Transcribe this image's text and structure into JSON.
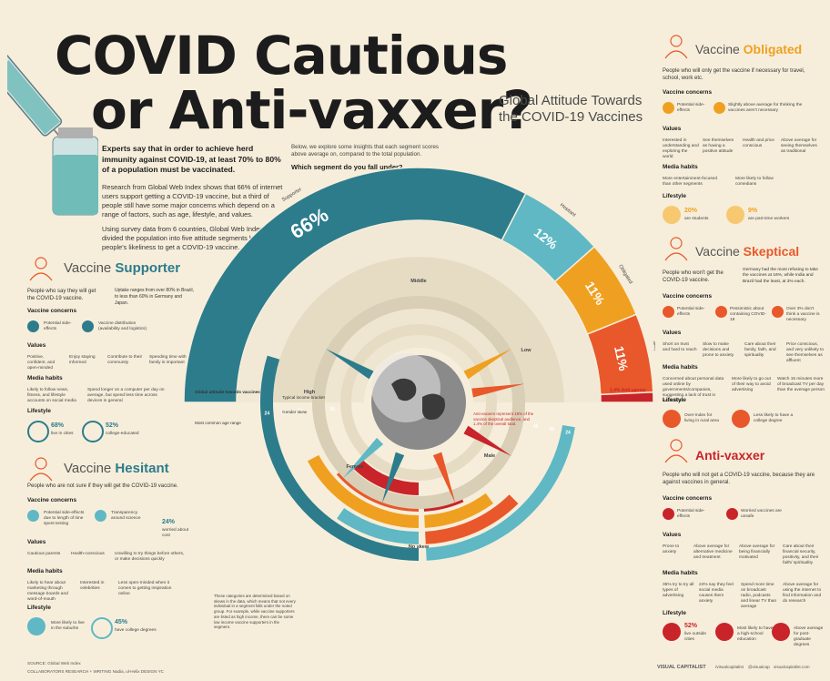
{
  "title": {
    "line1": "COVID Cautious",
    "line2": "or Anti-vaxxer?"
  },
  "subtitle": "Global Attitude Towards the COVID-19 Vaccines",
  "intro": {
    "lead": "Experts say that in order to achieve herd immunity against COVID-19, at least 70% to 80% of a population must be vaccinated.",
    "p1": "Research from Global Web Index shows that 66% of internet users support getting a COVID-19 vaccine, but a third of people still have some major concerns which depend on a range of factors, such as age, lifestyle, and values.",
    "p2": "Using survey data from 6 countries, Global Web Index divided the population into five attitude segments based on people's likeliness to get a COVID-19 vaccine."
  },
  "mid_intro": {
    "text": "Below, we explore some insights that each segment scores above average on, compared to the total population.",
    "question": "Which segment do you fall under?"
  },
  "chart_data": {
    "type": "pie",
    "title": "Global attitude towards vaccines",
    "categories": [
      "Supporter",
      "Hesitant",
      "Obligated",
      "Skeptical",
      "Anti-vaxxer"
    ],
    "values": [
      66,
      12,
      11,
      11,
      1.4
    ],
    "labels": [
      "66%",
      "12%",
      "11%",
      "11%",
      "1.4% Anti-vaxxer"
    ],
    "colors": [
      "#2c7c8c",
      "#5fb8c4",
      "#f0a020",
      "#e8582a",
      "#c8242a"
    ],
    "inner_labels": {
      "typical_income": "Typical income bracket",
      "gender": "Gender skew",
      "age": "Most common age range",
      "global": "Global attitude towards vaccines"
    },
    "income_labels": [
      "High",
      "Middle",
      "Low"
    ],
    "gender_labels": [
      "Female",
      "No skew",
      "Male"
    ],
    "age_bars": [
      {
        "segment": "Supporter",
        "value": "24",
        "color": "#2c7c8c"
      },
      {
        "segment": "Hesitant",
        "value": "18",
        "color": "#5fb8c4"
      },
      {
        "segment": "Obligated",
        "value": "25",
        "color": "#f0a020"
      },
      {
        "segment": "Skeptical",
        "value": "16",
        "color": "#e8582a"
      },
      {
        "segment": "Anti-vaxxer",
        "value": "16",
        "color": "#c8242a"
      }
    ],
    "age_bars_right": [
      {
        "segment": "Hesitant",
        "value": "24",
        "color": "#5fb8c4"
      },
      {
        "segment": "Skeptical",
        "value": "55",
        "color": "#e8582a"
      },
      {
        "segment": "Obligated",
        "value": "45",
        "color": "#f0a020"
      },
      {
        "segment": "Anti-vaxxer",
        "value": "64",
        "color": "#c8242a"
      }
    ],
    "anti_vaxxer_note": "Anti-vaxxers represent 15% of the vaccine skeptical audience, and 1.4% of the overall total.",
    "bottom_note": "These categories are determined based on skews in the data, which means that not every individual in a segment falls under the noted group. For example, while vaccine supporters are listed as high income, there can be some low income vaccine supporters in the segment."
  },
  "supporter": {
    "title_a": "Vaccine ",
    "title_b": "Supporter",
    "desc": "People who say they will get the COVID-19 vaccine.",
    "note": "Uptake ranges from over 80% in Brazil, to less than 60% in Germany and Japan.",
    "concerns_label": "Vaccine concerns",
    "concerns": [
      "Potential side-effects",
      "Vaccine distribution (availability and logistics)"
    ],
    "values_label": "Values",
    "values": [
      "Positive, confident, and open-minded",
      "Enjoy staying informed",
      "Contribute to their community",
      "Spending time with family is important"
    ],
    "media_label": "Media habits",
    "media": [
      "Likely to follow news, fitness, and lifestyle accounts on social media",
      "Spend longer on a computer per day on average, but spend less time across devices in general"
    ],
    "lifestyle_label": "Lifestyle",
    "stats": [
      {
        "v": "68%",
        "l": "live in cities"
      },
      {
        "v": "52%",
        "l": "college-educated"
      }
    ]
  },
  "hesitant": {
    "title_a": "Vaccine ",
    "title_b": "Hesitant",
    "desc": "People who are not sure if they will get the COVID-19 vaccine.",
    "concerns_label": "Vaccine concerns",
    "concerns": [
      "Potential side-effects due to length of time spent testing",
      "Transparency around science",
      "worried about cost"
    ],
    "concern_stat": "24%",
    "values_label": "Values",
    "values": [
      "Cautious parents",
      "Health-conscious",
      "Unwilling to try things before others, or make decisions quickly"
    ],
    "media_label": "Media habits",
    "media": [
      "Likely to hear about marketing through message boards and word-of-mouth",
      "Interested in celebrities",
      "Less open-minded when it comes to getting inspiration online"
    ],
    "lifestyle_label": "Lifestyle",
    "stats": [
      {
        "v": "",
        "l": "More likely to live in the suburbs"
      },
      {
        "v": "45%",
        "l": "have college degrees"
      }
    ]
  },
  "obligated": {
    "title_a": "Vaccine ",
    "title_b": "Obligated",
    "desc": "People who will only get the vaccine if necessary for travel, school, work etc.",
    "concerns_label": "Vaccine concerns",
    "concerns": [
      "Potential side-effects",
      "Slightly above average for thinking the vaccines aren't necessary"
    ],
    "values_label": "Values",
    "values": [
      "Interested in understanding and exploring the world",
      "See themselves as having a positive attitude",
      "Health and price conscious",
      "Above average for seeing themselves as traditional"
    ],
    "media_label": "Media habits",
    "media": [
      "More entertainment-focused than other segments",
      "More likely to follow comedians"
    ],
    "lifestyle_label": "Lifestyle",
    "stats": [
      {
        "v": "20%",
        "l": "are students"
      },
      {
        "v": "9%",
        "l": "are part-time workers"
      }
    ]
  },
  "skeptical": {
    "title_a": "Vaccine ",
    "title_b": "Skeptical",
    "desc": "People who won't get the COVID-19 vaccine.",
    "note": "Germany had the most refusing to take the vaccines at 16%, while India and Brazil had the least, at 3% each.",
    "concerns_label": "Vaccine concerns",
    "concerns": [
      "Potential side-effects",
      "Pessimistic about containing COVID-19",
      "Over 3% don't think a vaccine is necessary"
    ],
    "values_label": "Values",
    "values": [
      "Short on trust and hard to reach",
      "Slow to make decisions and prone to anxiety",
      "Care about their family, faith, and spirituality",
      "Price conscious, and very unlikely to see themselves as affluent"
    ],
    "media_label": "Media habits",
    "media": [
      "Concerned about personal data used online by governments/companies, suggesting a lack of trust in institutions",
      "More likely to go out of their way to avoid advertising",
      "Watch 15 minutes more of broadcast TV per day than the average person"
    ],
    "lifestyle_label": "Lifestyle",
    "stats": [
      {
        "v": "",
        "l": "Over-index for living in rural area"
      },
      {
        "v": "",
        "l": "Less likely to have a college degree"
      }
    ]
  },
  "antivaxxer": {
    "title": "Anti-vaxxer",
    "desc": "People who will not get a COVID-19 vaccine, because they are against vaccines in general.",
    "concerns_label": "Vaccine concerns",
    "concerns": [
      "Potential side-effects",
      "Worried vaccines are unsafe"
    ],
    "values_label": "Values",
    "values": [
      "Prone to anxiety",
      "Above average for alternative medicine and treatment",
      "Above average for being financially motivated",
      "Care about their financial security, positivity, and their faith/ spirituality"
    ],
    "media_label": "Media habits",
    "media": [
      "35% try to try all types of advertising",
      "24% say they feel social media causes them anxiety",
      "Spend more time on broadcast radio, podcasts and linear TV than average",
      "Above average for using the internet to find information and do research"
    ],
    "lifestyle_label": "Lifestyle",
    "stats": [
      {
        "v": "52%",
        "l": "live outside cities"
      },
      {
        "v": "",
        "l": "Most likely to have a high-school education"
      },
      {
        "v": "",
        "l": "Above average for post-graduate degrees"
      }
    ]
  },
  "footer": {
    "source": "SOURCE: Global Web Index",
    "collab": "COLLABORATORS  RESEARCH + WRITING Nadia, ul-Helix  DESIGN YC",
    "brand": "VISUAL CAPITALIST",
    "social": [
      "/visualcapitalist",
      "@visualcap",
      "/visualcapitalist",
      "visualcapitalist.com"
    ]
  }
}
